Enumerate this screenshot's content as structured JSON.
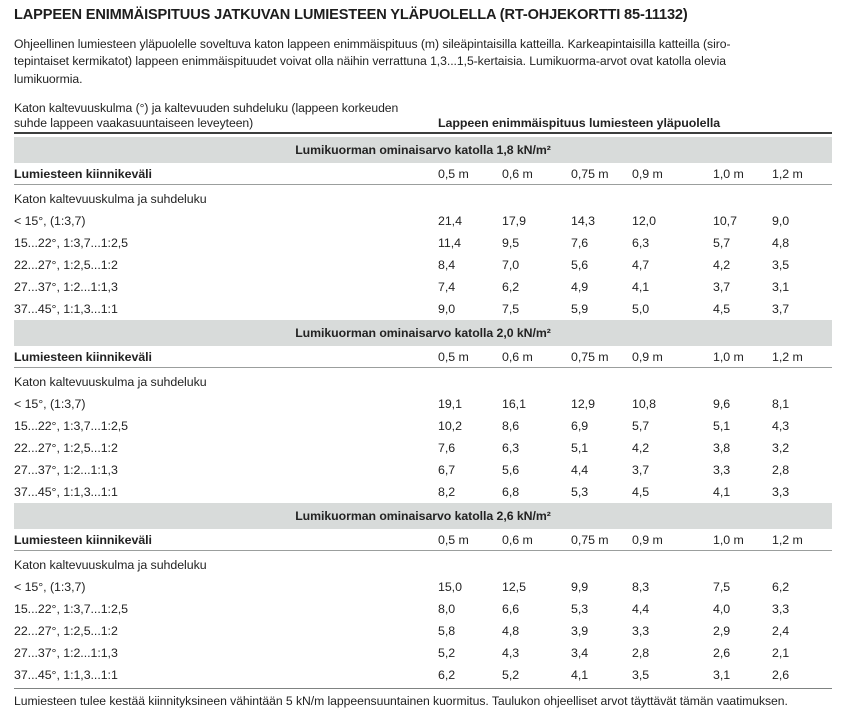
{
  "title": "LAPPEEN ENIMMÄISPITUUS JATKUVAN LUMIESTEEN YLÄPUOLELLA (RT-OHJEKORTTI 85-11132)",
  "intro_lines": [
    "Ohjeellinen lumiesteen yläpuolelle soveltuva katon lappeen enimmäispituus (m) sileäpintaisilla katteilla. Karkeapintaisilla katteilla (siro-",
    "tepintaiset kermikatot) lappeen enimmäispituudet voivat olla näihin verrattuna 1,3...1,5-kertaisia. Lumikuorma-arvot ovat katolla olevia",
    "lumikuormia."
  ],
  "table": {
    "header_left_lines": [
      "Katon kaltevuuskulma (°) ja kaltevuuden suhdeluku (lappeen korkeuden",
      "suhde lappeen vaakasuuntaiseen leveyteen)"
    ],
    "header_right": "Lappeen enimmäispituus lumiesteen yläpuolella",
    "spacing_label": "Lumiesteen kiinnikeväli",
    "spacing_columns": [
      "0,5 m",
      "0,6 m",
      "0,75 m",
      "0,9 m",
      "1,0 m",
      "1,2 m"
    ],
    "slope_label": "Katon kaltevuuskulma ja suhdeluku",
    "sections": [
      {
        "band": "Lumikuorman ominaisarvo katolla 1,8 kN/m²",
        "rows": [
          {
            "label": "< 15°, (1:3,7)",
            "values": [
              "21,4",
              "17,9",
              "14,3",
              "12,0",
              "10,7",
              "9,0"
            ]
          },
          {
            "label": "15...22°, 1:3,7...1:2,5",
            "values": [
              "11,4",
              "9,5",
              "7,6",
              "6,3",
              "5,7",
              "4,8"
            ]
          },
          {
            "label": "22...27°, 1:2,5...1:2",
            "values": [
              "8,4",
              "7,0",
              "5,6",
              "4,7",
              "4,2",
              "3,5"
            ]
          },
          {
            "label": "27...37°, 1:2...1:1,3",
            "values": [
              "7,4",
              "6,2",
              "4,9",
              "4,1",
              "3,7",
              "3,1"
            ]
          },
          {
            "label": "37...45°, 1:1,3...1:1",
            "values": [
              "9,0",
              "7,5",
              "5,9",
              "5,0",
              "4,5",
              "3,7"
            ]
          }
        ]
      },
      {
        "band": "Lumikuorman ominaisarvo katolla 2,0 kN/m²",
        "rows": [
          {
            "label": "< 15°, (1:3,7)",
            "values": [
              "19,1",
              "16,1",
              "12,9",
              "10,8",
              "9,6",
              "8,1"
            ]
          },
          {
            "label": "15...22°, 1:3,7...1:2,5",
            "values": [
              "10,2",
              "8,6",
              "6,9",
              "5,7",
              "5,1",
              "4,3"
            ]
          },
          {
            "label": "22...27°, 1:2,5...1:2",
            "values": [
              "7,6",
              "6,3",
              "5,1",
              "4,2",
              "3,8",
              "3,2"
            ]
          },
          {
            "label": "27...37°, 1:2...1:1,3",
            "values": [
              "6,7",
              "5,6",
              "4,4",
              "3,7",
              "3,3",
              "2,8"
            ]
          },
          {
            "label": "37...45°, 1:1,3...1:1",
            "values": [
              "8,2",
              "6,8",
              "5,3",
              "4,5",
              "4,1",
              "3,3"
            ]
          }
        ]
      },
      {
        "band": "Lumikuorman ominaisarvo katolla 2,6 kN/m²",
        "rows": [
          {
            "label": "< 15°, (1:3,7)",
            "values": [
              "15,0",
              "12,5",
              "9,9",
              "8,3",
              "7,5",
              "6,2"
            ]
          },
          {
            "label": "15...22°, 1:3,7...1:2,5",
            "values": [
              "8,0",
              "6,6",
              "5,3",
              "4,4",
              "4,0",
              "3,3"
            ]
          },
          {
            "label": "22...27°, 1:2,5...1:2",
            "values": [
              "5,8",
              "4,8",
              "3,9",
              "3,3",
              "2,9",
              "2,4"
            ]
          },
          {
            "label": "27...37°, 1:2...1:1,3",
            "values": [
              "5,2",
              "4,3",
              "3,4",
              "2,8",
              "2,6",
              "2,1"
            ]
          },
          {
            "label": "37...45°, 1:1,3...1:1",
            "values": [
              "6,2",
              "5,2",
              "4,1",
              "3,5",
              "3,1",
              "2,6"
            ]
          }
        ]
      }
    ]
  },
  "footnote": "Lumiesteen tulee kestää kiinnityksineen vähintään 5 kN/m lappeensuuntainen kuormitus. Taulukon ohjeelliset arvot täyttävät tämän vaatimuksen.",
  "colors": {
    "band_bg": "#d8dbda",
    "rule_dark": "#3c3e3d",
    "rule_light": "#9b9e9d",
    "text": "#232323"
  }
}
